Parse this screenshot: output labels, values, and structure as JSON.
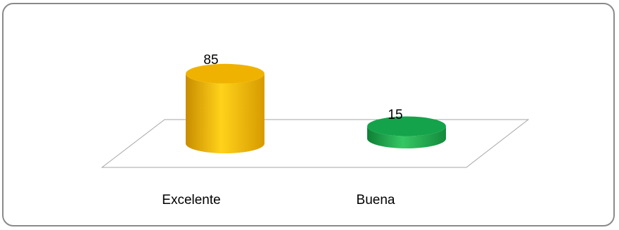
{
  "chart_data": {
    "type": "bar",
    "style": "3d-cylinder",
    "categories": [
      "Excelente",
      "Buena"
    ],
    "values": [
      85,
      15
    ],
    "data_labels": [
      "85",
      "15"
    ],
    "colors": [
      "#f5b400",
      "#1fa84a"
    ],
    "title": "",
    "xlabel": "",
    "ylabel": "",
    "ylim": [
      0,
      100
    ],
    "grid": false,
    "legend": "none"
  }
}
